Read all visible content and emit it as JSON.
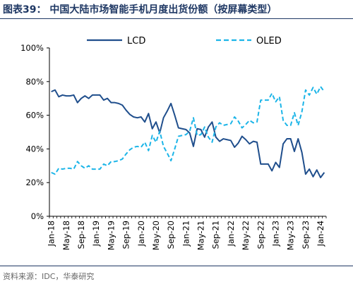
{
  "header": {
    "title": "图表39：  中国大陆市场智能手机月度出货份额（按屏幕类型）"
  },
  "footer": {
    "source": "资料来源：IDC，华泰研究"
  },
  "colors": {
    "title": "#1f3864",
    "lcd": "#1f4e8c",
    "oled": "#1cb5e8"
  },
  "chart_data": {
    "type": "line",
    "title": "",
    "xlabel": "",
    "ylabel": "",
    "ylim": [
      0,
      100
    ],
    "yticks": [
      "0%",
      "20%",
      "40%",
      "60%",
      "80%",
      "100%"
    ],
    "xtick_labels": [
      "Jan-18",
      "May-18",
      "Sep-18",
      "Jan-19",
      "May-19",
      "Sep-19",
      "Jan-20",
      "May-20",
      "Sep-20",
      "Jan-21",
      "May-21",
      "Sep-21",
      "Jan-22",
      "May-22",
      "Sep-22",
      "Jan-23",
      "May-23",
      "Sep-23",
      "Jan-24"
    ],
    "legend_position": "top",
    "grid": false,
    "x": [
      "2018-01",
      "2018-02",
      "2018-03",
      "2018-04",
      "2018-05",
      "2018-06",
      "2018-07",
      "2018-08",
      "2018-09",
      "2018-10",
      "2018-11",
      "2018-12",
      "2019-01",
      "2019-02",
      "2019-03",
      "2019-04",
      "2019-05",
      "2019-06",
      "2019-07",
      "2019-08",
      "2019-09",
      "2019-10",
      "2019-11",
      "2019-12",
      "2020-01",
      "2020-02",
      "2020-03",
      "2020-04",
      "2020-05",
      "2020-06",
      "2020-07",
      "2020-08",
      "2020-09",
      "2020-10",
      "2020-11",
      "2020-12",
      "2021-01",
      "2021-02",
      "2021-03",
      "2021-04",
      "2021-05",
      "2021-06",
      "2021-07",
      "2021-08",
      "2021-09",
      "2021-10",
      "2021-11",
      "2021-12",
      "2022-01",
      "2022-02",
      "2022-03",
      "2022-04",
      "2022-05",
      "2022-06",
      "2022-07",
      "2022-08",
      "2022-09",
      "2022-10",
      "2022-11",
      "2022-12",
      "2023-01",
      "2023-02",
      "2023-03",
      "2023-04",
      "2023-05",
      "2023-06",
      "2023-07",
      "2023-08",
      "2023-09",
      "2023-10",
      "2023-11",
      "2023-12",
      "2024-01",
      "2024-02"
    ],
    "series": [
      {
        "name": "LCD",
        "style": "solid",
        "values": [
          74,
          75,
          71,
          72,
          71.5,
          71.5,
          72,
          67.5,
          70,
          71.5,
          70,
          72,
          72,
          72,
          69,
          70,
          67.5,
          67.5,
          67,
          66,
          63,
          60.5,
          59,
          58.5,
          59,
          56,
          61,
          52,
          56,
          49.5,
          58.5,
          62.5,
          67,
          60,
          52.5,
          52,
          51.5,
          49.5,
          41.5,
          52,
          51.5,
          47,
          53,
          56,
          47,
          44.5,
          46,
          45.5,
          45,
          41,
          43.5,
          47.5,
          45.5,
          43,
          44.5,
          44,
          31,
          31,
          31,
          27,
          32,
          29,
          43,
          46,
          46,
          38.5,
          46,
          38,
          25,
          28,
          23.5,
          27.5,
          23,
          26
        ]
      },
      {
        "name": "OLED",
        "style": "dashed",
        "values": [
          26,
          25,
          28.5,
          28,
          28.5,
          28.5,
          28,
          32.5,
          30,
          28.5,
          30,
          28,
          28,
          28,
          31,
          30,
          32.5,
          32.5,
          33,
          34,
          37,
          39.5,
          41,
          41.5,
          41,
          44,
          39,
          48,
          44,
          50.5,
          41.5,
          37.5,
          33,
          40,
          47.5,
          48,
          48.5,
          50.5,
          58.5,
          48,
          48.5,
          53,
          47,
          44,
          53,
          55.5,
          54,
          54.5,
          55,
          59,
          56.5,
          52.5,
          54.5,
          57,
          55.5,
          56,
          69,
          69,
          69,
          73,
          68,
          71,
          57,
          54,
          54,
          61.5,
          54,
          62,
          75,
          72,
          76.5,
          72.5,
          77,
          74
        ]
      }
    ]
  }
}
